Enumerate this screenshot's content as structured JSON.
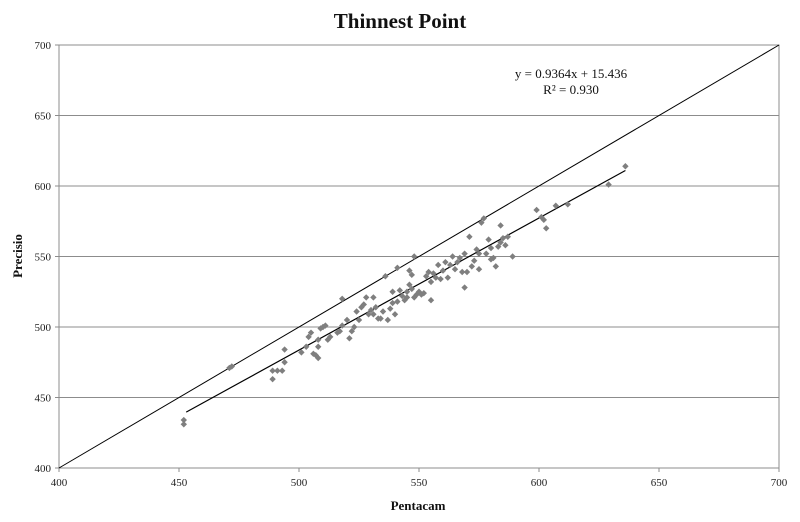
{
  "chart_data": {
    "type": "scatter",
    "title": "Thinnest Point",
    "xlabel": "Pentacam",
    "ylabel": "Precisio",
    "xlim": [
      400,
      700
    ],
    "ylim": [
      400,
      700
    ],
    "xticks": [
      "400",
      "450",
      "500",
      "550",
      "600",
      "650",
      "700"
    ],
    "yticks": [
      "400",
      "450",
      "500",
      "550",
      "600",
      "650",
      "700"
    ],
    "grid": "horizontal",
    "legend": "none",
    "marker_color": "#7f7f7f",
    "line_color": "#000000",
    "equation": "y = 0.9364x + 15.436",
    "r_squared": "R² = 0.930",
    "trendline": {
      "slope": 0.9364,
      "intercept": 15.436,
      "x_range": [
        453,
        636
      ]
    },
    "identity_line": {
      "from": [
        400,
        400
      ],
      "to": [
        700,
        700
      ]
    },
    "points": [
      [
        452,
        431
      ],
      [
        452,
        434
      ],
      [
        471,
        471
      ],
      [
        472,
        472
      ],
      [
        489,
        463
      ],
      [
        489,
        469
      ],
      [
        491,
        469
      ],
      [
        493,
        469
      ],
      [
        494,
        475
      ],
      [
        494,
        484
      ],
      [
        501,
        482
      ],
      [
        503,
        486
      ],
      [
        504,
        493
      ],
      [
        505,
        496
      ],
      [
        506,
        481
      ],
      [
        507,
        480
      ],
      [
        508,
        478
      ],
      [
        508,
        486
      ],
      [
        508,
        491
      ],
      [
        509,
        499
      ],
      [
        510,
        500
      ],
      [
        511,
        501
      ],
      [
        512,
        491
      ],
      [
        513,
        493
      ],
      [
        516,
        496
      ],
      [
        517,
        497
      ],
      [
        518,
        501
      ],
      [
        518,
        520
      ],
      [
        520,
        505
      ],
      [
        521,
        492
      ],
      [
        522,
        497
      ],
      [
        523,
        500
      ],
      [
        524,
        511
      ],
      [
        525,
        505
      ],
      [
        526,
        514
      ],
      [
        527,
        516
      ],
      [
        528,
        521
      ],
      [
        529,
        509
      ],
      [
        530,
        512
      ],
      [
        531,
        509
      ],
      [
        531,
        521
      ],
      [
        532,
        514
      ],
      [
        533,
        506
      ],
      [
        534,
        506
      ],
      [
        535,
        511
      ],
      [
        536,
        536
      ],
      [
        537,
        505
      ],
      [
        538,
        513
      ],
      [
        539,
        517
      ],
      [
        539,
        525
      ],
      [
        540,
        509
      ],
      [
        541,
        518
      ],
      [
        541,
        542
      ],
      [
        542,
        526
      ],
      [
        543,
        522
      ],
      [
        544,
        519
      ],
      [
        545,
        521
      ],
      [
        545,
        525
      ],
      [
        546,
        530
      ],
      [
        546,
        540
      ],
      [
        547,
        527
      ],
      [
        547,
        537
      ],
      [
        548,
        550
      ],
      [
        548,
        521
      ],
      [
        549,
        523
      ],
      [
        550,
        525
      ],
      [
        551,
        523
      ],
      [
        552,
        524
      ],
      [
        553,
        536
      ],
      [
        554,
        539
      ],
      [
        555,
        532
      ],
      [
        555,
        519
      ],
      [
        556,
        538
      ],
      [
        557,
        535
      ],
      [
        558,
        544
      ],
      [
        559,
        534
      ],
      [
        560,
        540
      ],
      [
        561,
        546
      ],
      [
        562,
        535
      ],
      [
        563,
        544
      ],
      [
        564,
        550
      ],
      [
        565,
        541
      ],
      [
        566,
        546
      ],
      [
        567,
        549
      ],
      [
        568,
        539
      ],
      [
        569,
        552
      ],
      [
        569,
        528
      ],
      [
        570,
        539
      ],
      [
        571,
        564
      ],
      [
        572,
        543
      ],
      [
        573,
        547
      ],
      [
        574,
        555
      ],
      [
        575,
        541
      ],
      [
        575,
        552
      ],
      [
        576,
        574
      ],
      [
        577,
        577
      ],
      [
        578,
        552
      ],
      [
        579,
        562
      ],
      [
        580,
        556
      ],
      [
        580,
        548
      ],
      [
        581,
        549
      ],
      [
        582,
        543
      ],
      [
        583,
        557
      ],
      [
        584,
        560
      ],
      [
        584,
        572
      ],
      [
        585,
        563
      ],
      [
        586,
        558
      ],
      [
        587,
        564
      ],
      [
        589,
        550
      ],
      [
        599,
        583
      ],
      [
        601,
        578
      ],
      [
        602,
        576
      ],
      [
        603,
        570
      ],
      [
        607,
        586
      ],
      [
        612,
        587
      ],
      [
        629,
        601
      ],
      [
        636,
        614
      ]
    ]
  }
}
